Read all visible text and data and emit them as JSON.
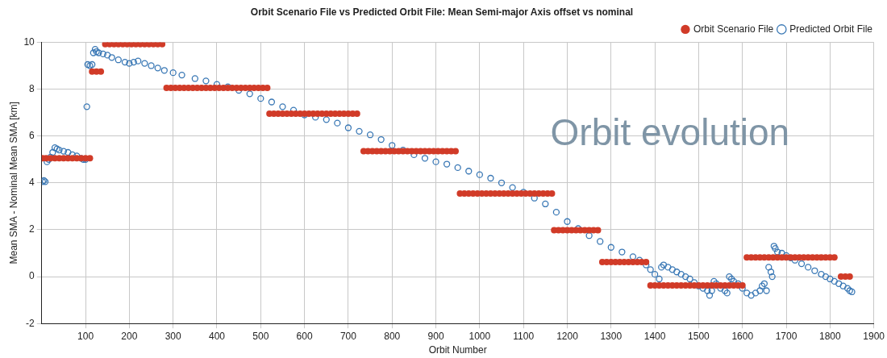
{
  "chart_data": {
    "type": "scatter",
    "title": "Orbit Scenario File vs Predicted Orbit File: Mean Semi-major Axis offset vs nominal",
    "xlabel": "Orbit Number",
    "ylabel": "Mean SMA - Nominal Mean SMA [km]",
    "xlim": [
      0,
      1900
    ],
    "xticks": [
      100,
      200,
      300,
      400,
      500,
      600,
      700,
      800,
      900,
      1000,
      1100,
      1200,
      1300,
      1400,
      1500,
      1600,
      1700,
      1800,
      1900
    ],
    "ylim": [
      -2,
      10
    ],
    "yticks": [
      -2,
      0,
      2,
      4,
      6,
      8,
      10
    ],
    "grid": true,
    "legend": "top right",
    "marker": "circle",
    "annotations": [
      "Orbit evolution"
    ],
    "series": [
      {
        "name": "Predicted Orbit File",
        "color": "#3a78b5",
        "x": [
          2,
          5,
          8,
          12,
          16,
          20,
          25,
          30,
          35,
          40,
          50,
          60,
          70,
          80,
          90,
          95,
          100,
          103,
          105,
          110,
          115,
          118,
          122,
          125,
          130,
          140,
          150,
          160,
          175,
          190,
          200,
          210,
          220,
          235,
          250,
          265,
          280,
          300,
          320,
          350,
          375,
          400,
          425,
          450,
          475,
          500,
          525,
          550,
          575,
          600,
          625,
          650,
          675,
          700,
          725,
          750,
          775,
          800,
          825,
          850,
          875,
          900,
          925,
          950,
          975,
          1000,
          1025,
          1050,
          1075,
          1100,
          1125,
          1150,
          1175,
          1200,
          1225,
          1250,
          1275,
          1300,
          1325,
          1350,
          1365,
          1380,
          1390,
          1400,
          1410,
          1415,
          1420,
          1430,
          1440,
          1450,
          1460,
          1470,
          1480,
          1490,
          1500,
          1510,
          1520,
          1525,
          1530,
          1535,
          1540,
          1550,
          1560,
          1565,
          1570,
          1575,
          1580,
          1590,
          1600,
          1610,
          1620,
          1630,
          1640,
          1645,
          1650,
          1655,
          1660,
          1665,
          1668,
          1672,
          1675,
          1680,
          1690,
          1700,
          1710,
          1720,
          1735,
          1750,
          1765,
          1780,
          1790,
          1800,
          1810,
          1820,
          1830,
          1840,
          1845,
          1850
        ],
        "values": [
          4.05,
          4.1,
          4.05,
          4.9,
          5.0,
          5.1,
          5.3,
          5.5,
          5.45,
          5.4,
          5.35,
          5.3,
          5.2,
          5.15,
          5.05,
          5.0,
          5.0,
          7.25,
          9.05,
          9.0,
          9.05,
          9.55,
          9.7,
          9.6,
          9.55,
          9.5,
          9.45,
          9.35,
          9.25,
          9.15,
          9.1,
          9.15,
          9.2,
          9.1,
          9.0,
          8.9,
          8.8,
          8.7,
          8.6,
          8.45,
          8.35,
          8.2,
          8.1,
          7.95,
          7.8,
          7.6,
          7.45,
          7.25,
          7.1,
          6.9,
          6.8,
          6.7,
          6.55,
          6.35,
          6.2,
          6.05,
          5.85,
          5.6,
          5.4,
          5.2,
          5.05,
          4.9,
          4.8,
          4.65,
          4.5,
          4.35,
          4.2,
          4.0,
          3.8,
          3.6,
          3.35,
          3.1,
          2.75,
          2.35,
          2.05,
          1.75,
          1.5,
          1.25,
          1.05,
          0.85,
          0.7,
          0.5,
          0.3,
          0.1,
          -0.1,
          0.4,
          0.5,
          0.4,
          0.3,
          0.2,
          0.1,
          0.0,
          -0.1,
          -0.25,
          -0.4,
          -0.5,
          -0.6,
          -0.8,
          -0.6,
          -0.2,
          -0.3,
          -0.5,
          -0.6,
          -0.7,
          0.0,
          -0.1,
          -0.2,
          -0.3,
          -0.5,
          -0.7,
          -0.8,
          -0.7,
          -0.6,
          -0.4,
          -0.3,
          -0.6,
          0.4,
          0.2,
          0.0,
          1.3,
          1.2,
          1.05,
          1.0,
          0.9,
          0.8,
          0.7,
          0.55,
          0.4,
          0.25,
          0.1,
          0.0,
          -0.1,
          -0.2,
          -0.3,
          -0.4,
          -0.5,
          -0.6,
          -0.65
        ]
      },
      {
        "name": "Orbit Scenario File",
        "color": "#d13b28",
        "x": [
          2,
          10,
          20,
          30,
          40,
          50,
          60,
          70,
          80,
          90,
          100,
          110,
          115,
          125,
          135,
          145,
          155,
          165,
          175,
          185,
          195,
          205,
          215,
          225,
          235,
          245,
          255,
          265,
          275,
          285,
          295,
          305,
          315,
          325,
          335,
          345,
          355,
          365,
          375,
          385,
          395,
          405,
          415,
          425,
          435,
          445,
          455,
          465,
          475,
          485,
          495,
          505,
          515,
          520,
          530,
          540,
          550,
          560,
          570,
          580,
          590,
          600,
          610,
          620,
          630,
          640,
          650,
          660,
          670,
          680,
          690,
          700,
          710,
          720,
          735,
          745,
          755,
          765,
          775,
          785,
          795,
          805,
          815,
          825,
          835,
          845,
          855,
          865,
          875,
          885,
          895,
          905,
          915,
          925,
          935,
          945,
          955,
          965,
          975,
          985,
          995,
          1005,
          1015,
          1025,
          1035,
          1045,
          1055,
          1065,
          1075,
          1085,
          1095,
          1105,
          1115,
          1125,
          1135,
          1145,
          1155,
          1165,
          1170,
          1180,
          1190,
          1200,
          1210,
          1220,
          1230,
          1240,
          1250,
          1260,
          1270,
          1280,
          1290,
          1300,
          1310,
          1320,
          1330,
          1340,
          1350,
          1360,
          1370,
          1380,
          1390,
          1400,
          1410,
          1420,
          1430,
          1440,
          1450,
          1460,
          1470,
          1480,
          1490,
          1500,
          1510,
          1520,
          1530,
          1540,
          1550,
          1560,
          1570,
          1580,
          1590,
          1600,
          1610,
          1620,
          1630,
          1640,
          1650,
          1660,
          1670,
          1680,
          1690,
          1700,
          1710,
          1720,
          1730,
          1740,
          1750,
          1760,
          1770,
          1780,
          1790,
          1800,
          1810,
          1825,
          1835,
          1845
        ],
        "values": [
          5.05,
          5.05,
          5.05,
          5.05,
          5.05,
          5.05,
          5.05,
          5.05,
          5.05,
          5.05,
          5.05,
          5.05,
          8.75,
          8.75,
          8.75,
          9.92,
          9.92,
          9.92,
          9.92,
          9.92,
          9.92,
          9.92,
          9.92,
          9.92,
          9.92,
          9.92,
          9.92,
          9.92,
          9.92,
          8.05,
          8.05,
          8.05,
          8.05,
          8.05,
          8.05,
          8.05,
          8.05,
          8.05,
          8.05,
          8.05,
          8.05,
          8.05,
          8.05,
          8.05,
          8.05,
          8.05,
          8.05,
          8.05,
          8.05,
          8.05,
          8.05,
          8.05,
          8.05,
          6.95,
          6.95,
          6.95,
          6.95,
          6.95,
          6.95,
          6.95,
          6.95,
          6.95,
          6.95,
          6.95,
          6.95,
          6.95,
          6.95,
          6.95,
          6.95,
          6.95,
          6.95,
          6.95,
          6.95,
          6.95,
          5.35,
          5.35,
          5.35,
          5.35,
          5.35,
          5.35,
          5.35,
          5.35,
          5.35,
          5.35,
          5.35,
          5.35,
          5.35,
          5.35,
          5.35,
          5.35,
          5.35,
          5.35,
          5.35,
          5.35,
          5.35,
          5.35,
          3.55,
          3.55,
          3.55,
          3.55,
          3.55,
          3.55,
          3.55,
          3.55,
          3.55,
          3.55,
          3.55,
          3.55,
          3.55,
          3.55,
          3.55,
          3.55,
          3.55,
          3.55,
          3.55,
          3.55,
          3.55,
          3.55,
          1.98,
          1.98,
          1.98,
          1.98,
          1.98,
          1.98,
          1.98,
          1.98,
          1.98,
          1.98,
          1.98,
          0.62,
          0.62,
          0.62,
          0.62,
          0.62,
          0.62,
          0.62,
          0.62,
          0.62,
          0.62,
          0.62,
          -0.38,
          -0.38,
          -0.38,
          -0.38,
          -0.38,
          -0.38,
          -0.38,
          -0.38,
          -0.38,
          -0.38,
          -0.38,
          -0.38,
          -0.38,
          -0.38,
          -0.38,
          -0.38,
          -0.38,
          -0.38,
          -0.38,
          -0.38,
          -0.38,
          -0.38,
          0.82,
          0.82,
          0.82,
          0.82,
          0.82,
          0.82,
          0.82,
          0.82,
          0.82,
          0.82,
          0.82,
          0.82,
          0.82,
          0.82,
          0.82,
          0.82,
          0.82,
          0.82,
          0.82,
          0.82,
          0.82,
          0.0,
          0.0,
          0.0
        ]
      }
    ]
  }
}
